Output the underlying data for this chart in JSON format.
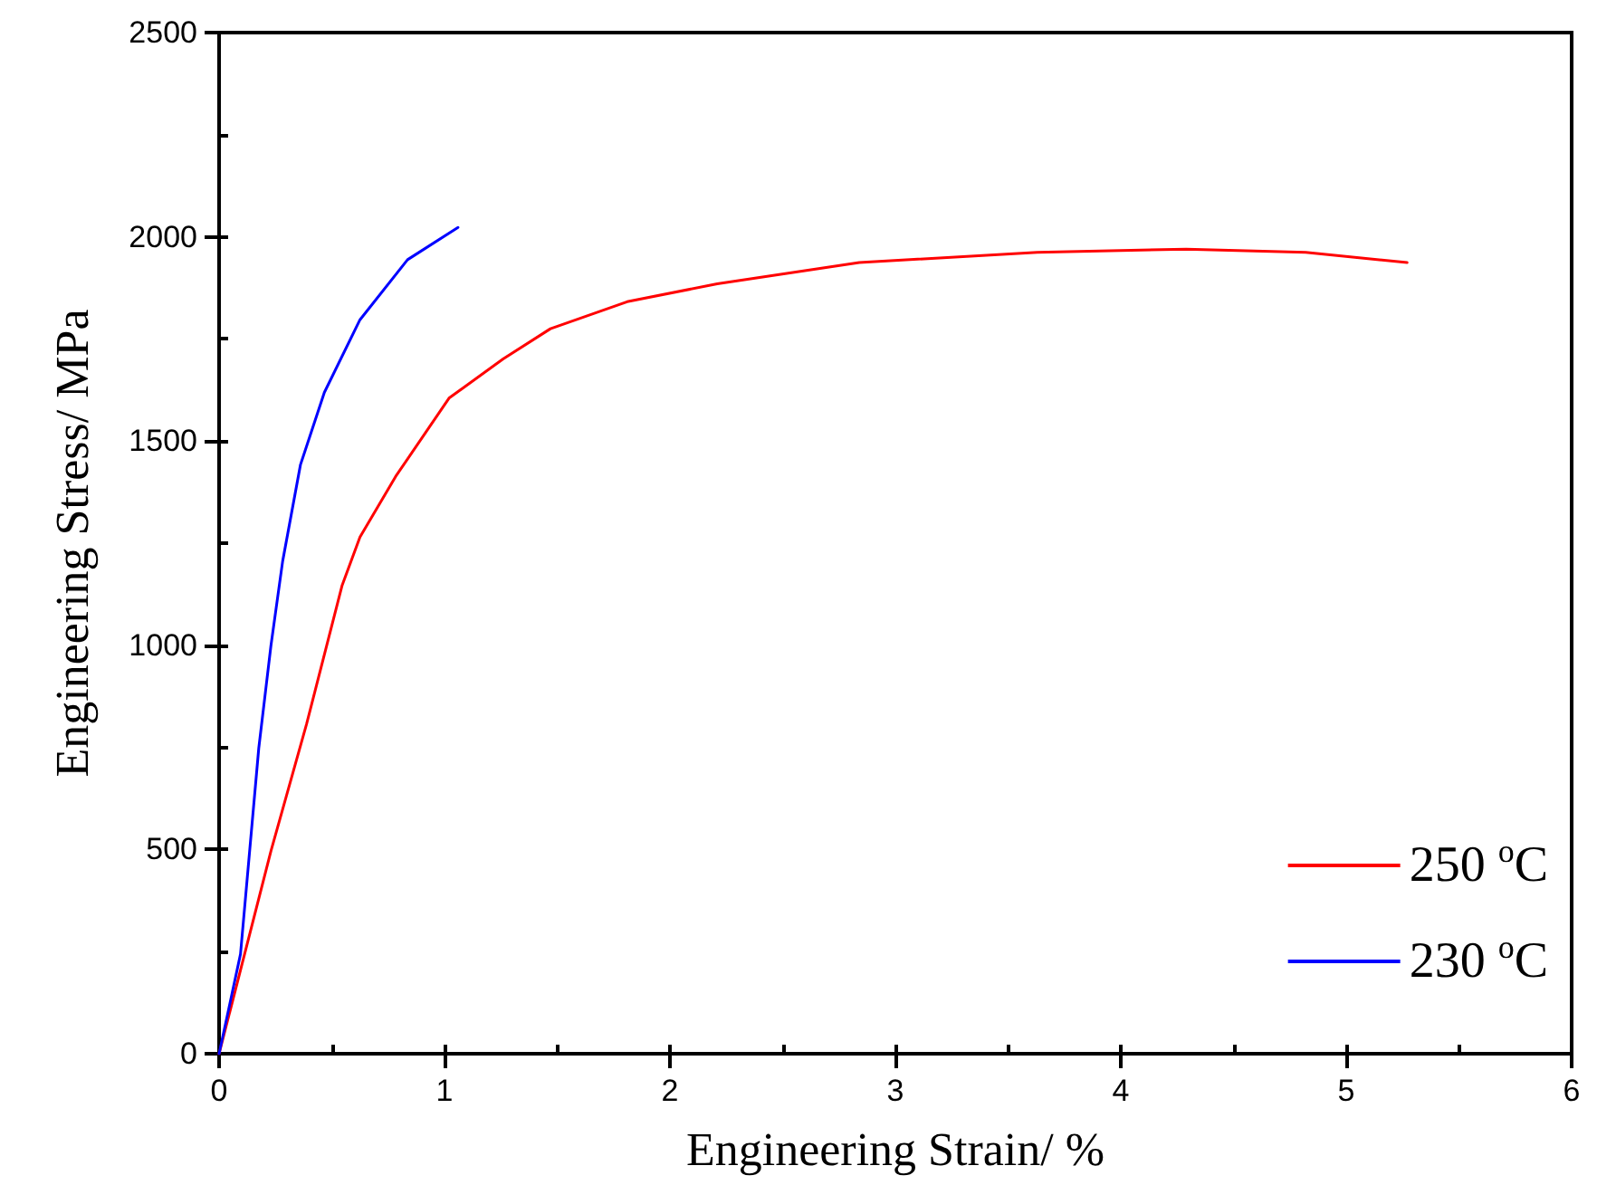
{
  "chart_data": {
    "type": "line",
    "xlabel": "Engineering Strain/ %",
    "ylabel": "Engineering Stress/ MPa",
    "xlim": [
      0,
      6
    ],
    "xticks": [
      0,
      1,
      2,
      3,
      4,
      5,
      6
    ],
    "ylim": [
      0,
      2500
    ],
    "yticks": [
      0,
      500,
      1000,
      1500,
      2000,
      2500
    ],
    "grid": false,
    "legend": "bottom right",
    "marker": "none",
    "line_style": "solid",
    "series": [
      {
        "name": "250 $^{o}$C",
        "color": "#ff0000",
        "x": [
          0,
          0.23,
          0.388,
          0.546,
          0.625,
          0.783,
          1.02,
          1.26,
          1.47,
          1.81,
          2.21,
          2.84,
          3.63,
          4.29,
          4.82,
          5.27
        ],
        "values": [
          0,
          496,
          807,
          1147,
          1265,
          1413,
          1605,
          1701,
          1775,
          1841,
          1885,
          1937,
          1962,
          1970,
          1962,
          1937
        ]
      },
      {
        "name": "230 $^{o}$C",
        "color": "#0000ff",
        "x": [
          0,
          0.095,
          0.176,
          0.23,
          0.282,
          0.361,
          0.467,
          0.625,
          0.836,
          1.06
        ],
        "values": [
          0,
          244,
          748,
          999,
          1206,
          1442,
          1619,
          1797,
          1944,
          2023
        ]
      }
    ]
  }
}
